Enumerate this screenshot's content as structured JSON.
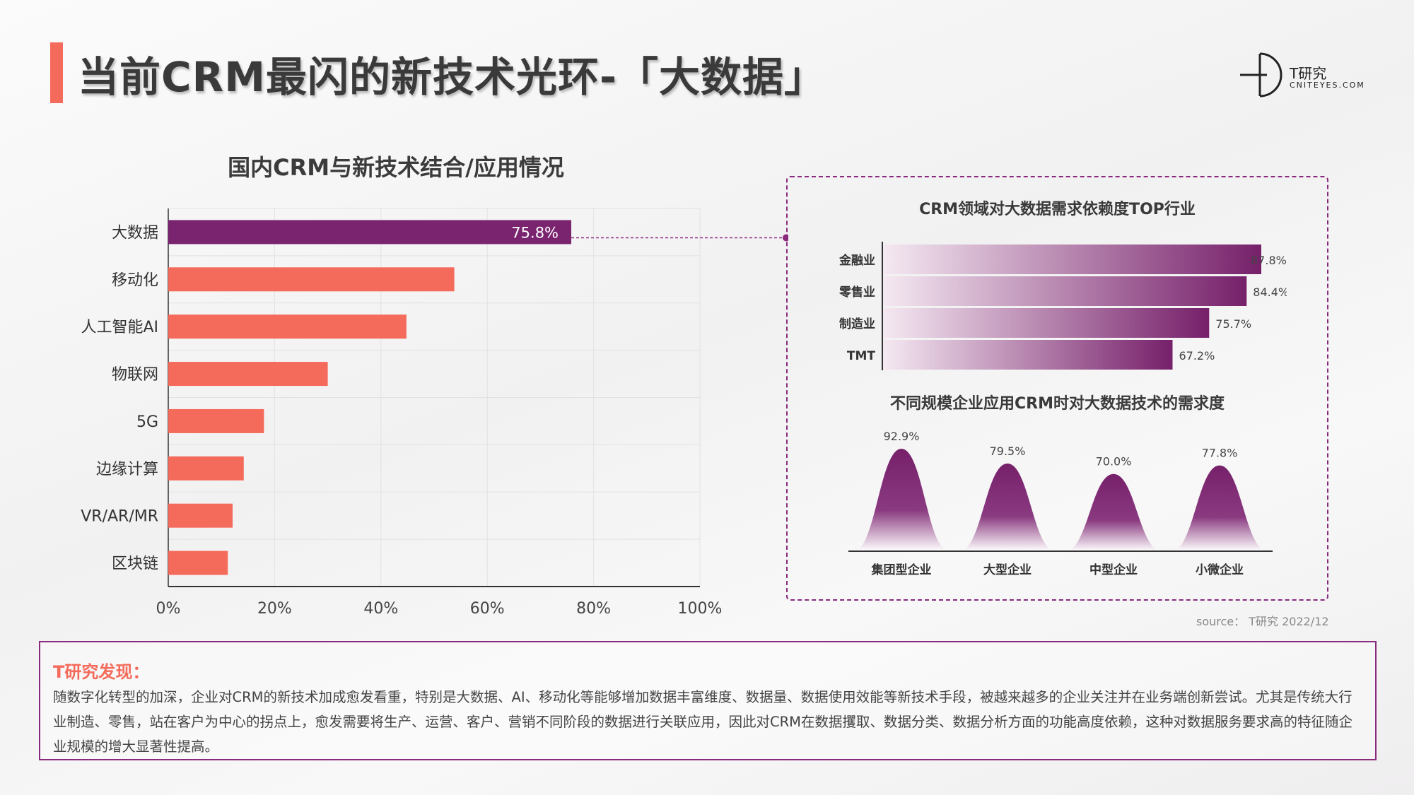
{
  "title": "当前CRM最闪的新技术光环-「大数据」",
  "logo": {
    "name": "T研究",
    "domain": "CNITEYES.COM"
  },
  "colors": {
    "accent": "#f46b5b",
    "purple": "#76206a",
    "highlight_bar": "#7a2470"
  },
  "chart_data": [
    {
      "type": "bar",
      "orientation": "horizontal",
      "title": "国内CRM与新技术结合/应用情况",
      "categories": [
        "大数据",
        "移动化",
        "人工智能AI",
        "物联网",
        "5G",
        "边缘计算",
        "VR/AR/MR",
        "区块链"
      ],
      "values": [
        75.8,
        53.8,
        44.8,
        30.0,
        18.0,
        14.2,
        12.1,
        11.2
      ],
      "value_labels": [
        "75.8%",
        "",
        "",
        "",
        "",
        "",
        "",
        ""
      ],
      "xlim": [
        0,
        100
      ],
      "x_ticks": [
        "0%",
        "20%",
        "40%",
        "60%",
        "80%",
        "100%"
      ],
      "grid": true
    },
    {
      "type": "bar",
      "orientation": "horizontal",
      "title": "CRM领域对大数据需求依赖度TOP行业",
      "categories": [
        "金融业",
        "零售业",
        "制造业",
        "TMT"
      ],
      "values": [
        87.8,
        84.4,
        75.7,
        67.2
      ],
      "value_labels": [
        "87.8%",
        "84.4%",
        "75.7%",
        "67.2%"
      ]
    },
    {
      "type": "bar",
      "style": "bell-shaped peaks",
      "title": "不同规模企业应用CRM时对大数据技术的需求度",
      "categories": [
        "集团型企业",
        "大型企业",
        "中型企业",
        "小微企业"
      ],
      "values": [
        92.9,
        79.5,
        70.0,
        77.8
      ],
      "value_labels": [
        "92.9%",
        "79.5%",
        "70.0%",
        "77.8%"
      ]
    }
  ],
  "source": "source：  T研究 2022/12",
  "finding": {
    "title": "T研究发现：",
    "text": "随数字化转型的加深，企业对CRM的新技术加成愈发看重，特别是大数据、AI、移动化等能够增加数据丰富维度、数据量、数据使用效能等新技术手段，被越来越多的企业关注并在业务端创新尝试。尤其是传统大行业制造、零售，站在客户为中心的拐点上，愈发需要将生产、运营、客户、营销不同阶段的数据进行关联应用，因此对CRM在数据攫取、数据分类、数据分析方面的功能高度依赖，这种对数据服务要求高的特征随企业规模的增大显著性提高。"
  }
}
